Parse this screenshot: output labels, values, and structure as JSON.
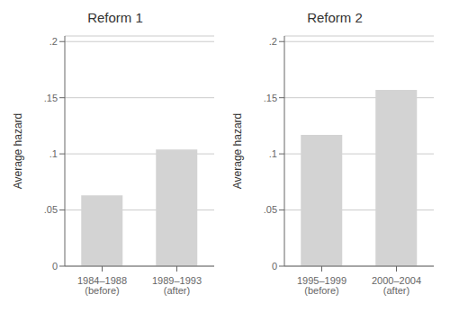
{
  "chart_data": [
    {
      "type": "bar",
      "title": "Reform 1",
      "categories": [
        "1984–1988 (before)",
        "1989–1993 (after)"
      ],
      "values": [
        0.063,
        0.104
      ],
      "ylabel": "Average hazard",
      "color": "#d3d3d3",
      "ylim": [
        0,
        0.205
      ],
      "yticks": [
        0,
        {
          "value": 0.05,
          "label": ".05"
        },
        {
          "value": 0.1,
          "label": ".1"
        },
        {
          "value": 0.15,
          "label": ".15"
        },
        {
          "value": 0.2,
          "label": ".2"
        }
      ],
      "grid": true
    },
    {
      "type": "bar",
      "title": "Reform 2",
      "categories": [
        "1995–1999 (before)",
        "2000–2004 (after)"
      ],
      "values": [
        0.117,
        0.157
      ],
      "ylabel": "Average hazard",
      "color": "#d3d3d3",
      "ylim": [
        0,
        0.205
      ],
      "yticks": [
        0,
        {
          "value": 0.05,
          "label": ".05"
        },
        {
          "value": 0.1,
          "label": ".1"
        },
        {
          "value": 0.15,
          "label": ".15"
        },
        {
          "value": 0.2,
          "label": ".2"
        }
      ],
      "grid": true
    }
  ]
}
